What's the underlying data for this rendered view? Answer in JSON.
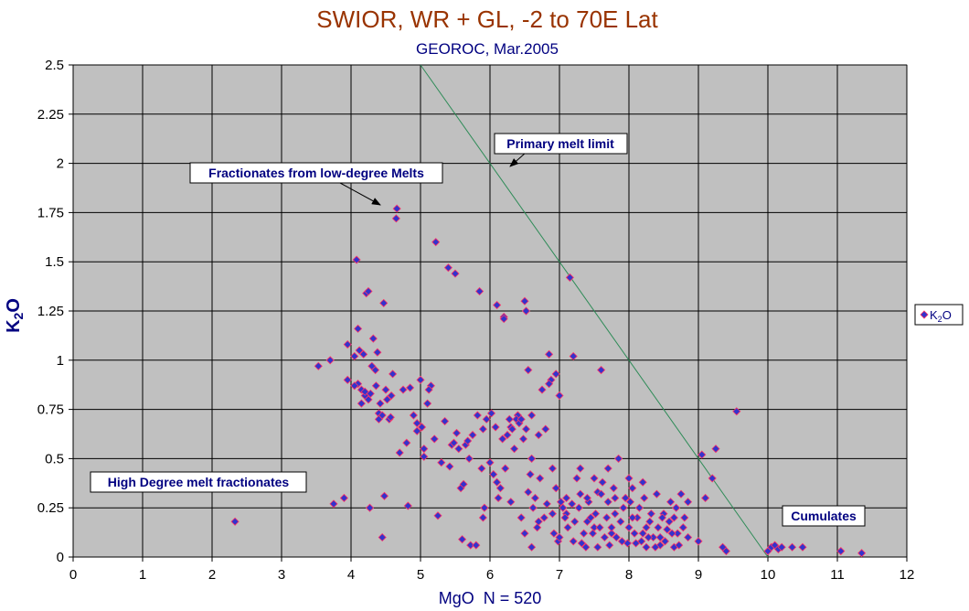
{
  "chart_data": {
    "type": "scatter",
    "title": "SWIOR, WR + GL, -2 to 70E Lat",
    "subtitle": "GEOROC, Mar.2005",
    "xlabel": "MgO  N = 520",
    "ylabel": "K2O",
    "xlim": [
      0,
      12
    ],
    "ylim": [
      0,
      2.5
    ],
    "x_ticks": [
      "0",
      "1",
      "2",
      "3",
      "4",
      "5",
      "6",
      "7",
      "8",
      "9",
      "10",
      "11",
      "12"
    ],
    "y_ticks": [
      "0",
      "0.25",
      "0.5",
      "0.75",
      "1",
      "1.25",
      "1.5",
      "1.75",
      "2",
      "2.25",
      "2.5"
    ],
    "grid": true,
    "legend_position": "right",
    "series": [
      {
        "name": "K2O",
        "color": "#3333cc",
        "marker": "diamond",
        "edge_color": "#ff3366",
        "points": [
          [
            2.33,
            0.18
          ],
          [
            3.53,
            0.97
          ],
          [
            3.7,
            1.0
          ],
          [
            3.75,
            0.27
          ],
          [
            3.9,
            0.3
          ],
          [
            3.95,
            1.08
          ],
          [
            3.95,
            0.9
          ],
          [
            4.05,
            1.02
          ],
          [
            4.08,
            1.51
          ],
          [
            4.1,
            1.16
          ],
          [
            4.12,
            1.05
          ],
          [
            4.15,
            0.85
          ],
          [
            4.2,
            0.82
          ],
          [
            4.22,
            1.34
          ],
          [
            4.25,
            1.35
          ],
          [
            4.27,
            0.25
          ],
          [
            4.32,
            1.11
          ],
          [
            4.35,
            0.95
          ],
          [
            4.38,
            1.04
          ],
          [
            4.4,
            0.73
          ],
          [
            4.42,
            0.78
          ],
          [
            4.45,
            0.1
          ],
          [
            4.47,
            1.29
          ],
          [
            4.48,
            0.31
          ],
          [
            4.5,
            0.85
          ],
          [
            4.55,
            0.7
          ],
          [
            4.57,
            0.71
          ],
          [
            4.6,
            0.93
          ],
          [
            4.65,
            1.72
          ],
          [
            4.66,
            1.77
          ],
          [
            4.7,
            0.53
          ],
          [
            4.75,
            0.85
          ],
          [
            4.8,
            0.58
          ],
          [
            4.82,
            0.26
          ],
          [
            4.85,
            0.86
          ],
          [
            4.9,
            0.72
          ],
          [
            4.95,
            0.64
          ],
          [
            5.0,
            0.9
          ],
          [
            5.05,
            0.51
          ],
          [
            5.1,
            0.78
          ],
          [
            5.15,
            0.87
          ],
          [
            5.22,
            1.6
          ],
          [
            5.25,
            0.21
          ],
          [
            5.3,
            0.48
          ],
          [
            5.35,
            0.69
          ],
          [
            5.4,
            1.47
          ],
          [
            5.45,
            0.57
          ],
          [
            5.5,
            1.44
          ],
          [
            5.55,
            0.55
          ],
          [
            5.6,
            0.09
          ],
          [
            5.65,
            0.57
          ],
          [
            5.7,
            0.5
          ],
          [
            5.72,
            0.06
          ],
          [
            5.8,
            0.06
          ],
          [
            5.85,
            1.35
          ],
          [
            5.9,
            0.65
          ],
          [
            5.95,
            0.7
          ],
          [
            6.0,
            0.48
          ],
          [
            6.05,
            0.42
          ],
          [
            6.1,
            1.28
          ],
          [
            6.15,
            0.35
          ],
          [
            6.2,
            1.22
          ],
          [
            6.25,
            0.62
          ],
          [
            6.3,
            0.66
          ],
          [
            6.35,
            0.55
          ],
          [
            6.4,
            0.72
          ],
          [
            6.45,
            0.2
          ],
          [
            6.5,
            1.3
          ],
          [
            6.52,
            1.25
          ],
          [
            6.55,
            0.95
          ],
          [
            6.6,
            0.5
          ],
          [
            6.65,
            0.3
          ],
          [
            6.7,
            0.62
          ],
          [
            6.75,
            0.85
          ],
          [
            6.8,
            0.65
          ],
          [
            6.85,
            1.03
          ],
          [
            6.9,
            0.45
          ],
          [
            6.95,
            0.35
          ],
          [
            7.0,
            0.82
          ],
          [
            7.05,
            0.25
          ],
          [
            7.1,
            0.22
          ],
          [
            7.15,
            1.42
          ],
          [
            7.2,
            1.02
          ],
          [
            7.25,
            0.4
          ],
          [
            7.3,
            0.32
          ],
          [
            7.35,
            0.12
          ],
          [
            7.4,
            0.18
          ],
          [
            7.45,
            0.2
          ],
          [
            7.5,
            0.15
          ],
          [
            7.55,
            0.33
          ],
          [
            7.6,
            0.95
          ],
          [
            7.65,
            0.1
          ],
          [
            7.7,
            0.28
          ],
          [
            7.75,
            0.12
          ],
          [
            7.8,
            0.22
          ],
          [
            7.85,
            0.5
          ],
          [
            7.9,
            0.08
          ],
          [
            7.95,
            0.3
          ],
          [
            8.0,
            0.15
          ],
          [
            8.05,
            0.35
          ],
          [
            8.1,
            0.07
          ],
          [
            8.15,
            0.25
          ],
          [
            8.2,
            0.12
          ],
          [
            8.25,
            0.05
          ],
          [
            8.3,
            0.18
          ],
          [
            8.35,
            0.1
          ],
          [
            8.4,
            0.32
          ],
          [
            8.45,
            0.06
          ],
          [
            8.5,
            0.22
          ],
          [
            8.55,
            0.14
          ],
          [
            8.6,
            0.28
          ],
          [
            8.65,
            0.05
          ],
          [
            8.7,
            0.12
          ],
          [
            8.75,
            0.32
          ],
          [
            8.8,
            0.2
          ],
          [
            8.85,
            0.1
          ],
          [
            9.0,
            0.08
          ],
          [
            9.05,
            0.52
          ],
          [
            9.1,
            0.3
          ],
          [
            9.2,
            0.4
          ],
          [
            9.25,
            0.55
          ],
          [
            9.35,
            0.05
          ],
          [
            9.4,
            0.03
          ],
          [
            9.55,
            0.74
          ],
          [
            10.0,
            0.03
          ],
          [
            10.05,
            0.05
          ],
          [
            10.1,
            0.06
          ],
          [
            10.15,
            0.04
          ],
          [
            10.2,
            0.05
          ],
          [
            10.35,
            0.05
          ],
          [
            10.5,
            0.05
          ],
          [
            11.05,
            0.03
          ],
          [
            11.35,
            0.02
          ],
          [
            4.18,
            1.03
          ],
          [
            4.28,
            0.83
          ],
          [
            4.3,
            0.97
          ],
          [
            4.36,
            0.87
          ],
          [
            4.4,
            0.7
          ],
          [
            4.52,
            0.8
          ],
          [
            4.58,
            0.82
          ],
          [
            4.95,
            0.68
          ],
          [
            5.02,
            0.66
          ],
          [
            5.05,
            0.55
          ],
          [
            5.12,
            0.85
          ],
          [
            5.2,
            0.6
          ],
          [
            5.42,
            0.46
          ],
          [
            5.48,
            0.58
          ],
          [
            5.52,
            0.63
          ],
          [
            5.58,
            0.35
          ],
          [
            5.62,
            0.37
          ],
          [
            5.68,
            0.59
          ],
          [
            5.75,
            0.62
          ],
          [
            5.82,
            0.72
          ],
          [
            5.88,
            0.45
          ],
          [
            5.92,
            0.25
          ],
          [
            6.02,
            0.73
          ],
          [
            6.08,
            0.66
          ],
          [
            6.12,
            0.3
          ],
          [
            6.18,
            0.6
          ],
          [
            6.22,
            0.45
          ],
          [
            6.28,
            0.7
          ],
          [
            6.32,
            0.65
          ],
          [
            6.38,
            0.7
          ],
          [
            6.42,
            0.68
          ],
          [
            6.48,
            0.6
          ],
          [
            6.55,
            0.33
          ],
          [
            6.58,
            0.42
          ],
          [
            6.62,
            0.25
          ],
          [
            6.68,
            0.15
          ],
          [
            6.72,
            0.4
          ],
          [
            6.78,
            0.2
          ],
          [
            6.82,
            0.27
          ],
          [
            6.88,
            0.9
          ],
          [
            6.92,
            0.12
          ],
          [
            6.98,
            0.08
          ],
          [
            7.02,
            0.28
          ],
          [
            7.08,
            0.2
          ],
          [
            7.12,
            0.15
          ],
          [
            7.18,
            0.27
          ],
          [
            7.22,
            0.18
          ],
          [
            7.28,
            0.25
          ],
          [
            7.32,
            0.07
          ],
          [
            7.38,
            0.05
          ],
          [
            7.42,
            0.28
          ],
          [
            7.48,
            0.12
          ],
          [
            7.52,
            0.22
          ],
          [
            7.58,
            0.15
          ],
          [
            7.62,
            0.38
          ],
          [
            7.68,
            0.2
          ],
          [
            7.72,
            0.06
          ],
          [
            7.78,
            0.35
          ],
          [
            7.82,
            0.1
          ],
          [
            7.88,
            0.18
          ],
          [
            7.92,
            0.25
          ],
          [
            7.98,
            0.07
          ],
          [
            8.02,
            0.28
          ],
          [
            8.08,
            0.12
          ],
          [
            8.12,
            0.2
          ],
          [
            8.18,
            0.08
          ],
          [
            8.22,
            0.3
          ],
          [
            8.28,
            0.1
          ],
          [
            8.32,
            0.22
          ],
          [
            8.38,
            0.05
          ],
          [
            8.42,
            0.15
          ],
          [
            8.48,
            0.2
          ],
          [
            8.52,
            0.08
          ],
          [
            8.58,
            0.18
          ],
          [
            8.62,
            0.12
          ],
          [
            8.68,
            0.25
          ],
          [
            8.72,
            0.06
          ],
          [
            8.78,
            0.15
          ],
          [
            7.4,
            0.3
          ],
          [
            7.5,
            0.4
          ],
          [
            7.6,
            0.32
          ],
          [
            7.7,
            0.45
          ],
          [
            7.8,
            0.3
          ],
          [
            8.0,
            0.4
          ],
          [
            8.2,
            0.38
          ],
          [
            7.3,
            0.45
          ],
          [
            7.1,
            0.3
          ],
          [
            6.9,
            0.22
          ],
          [
            6.7,
            0.18
          ],
          [
            6.5,
            0.12
          ],
          [
            6.3,
            0.28
          ],
          [
            6.1,
            0.38
          ],
          [
            5.9,
            0.2
          ],
          [
            6.6,
            0.05
          ],
          [
            7.0,
            0.1
          ],
          [
            7.2,
            0.08
          ],
          [
            7.55,
            0.05
          ],
          [
            7.75,
            0.15
          ],
          [
            8.05,
            0.2
          ],
          [
            8.25,
            0.15
          ],
          [
            8.45,
            0.1
          ],
          [
            8.65,
            0.2
          ],
          [
            8.85,
            0.28
          ],
          [
            6.45,
            0.7
          ],
          [
            6.52,
            0.65
          ],
          [
            6.6,
            0.72
          ],
          [
            4.1,
            0.88
          ],
          [
            4.2,
            0.84
          ],
          [
            4.25,
            0.8
          ],
          [
            4.15,
            0.78
          ],
          [
            4.45,
            0.72
          ],
          [
            4.05,
            0.87
          ],
          [
            6.95,
            0.93
          ],
          [
            6.85,
            0.88
          ],
          [
            6.2,
            1.21
          ]
        ]
      }
    ],
    "annotations": [
      {
        "text": "Primary melt limit"
      },
      {
        "text": "Fractionates from low-degree Melts"
      },
      {
        "text": "High Degree melt fractionates"
      },
      {
        "text": "Cumulates"
      }
    ],
    "reference_line": {
      "from": [
        5.0,
        2.5
      ],
      "to": [
        10.0,
        0.0
      ],
      "color": "#2e8b57"
    }
  }
}
